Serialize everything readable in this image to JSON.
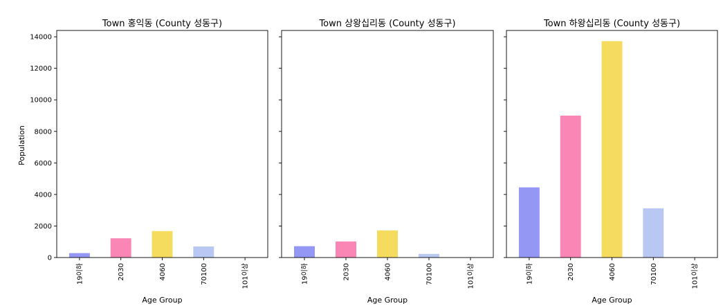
{
  "ylabel": "Population",
  "xlabel": "Age Group",
  "chart_data": [
    {
      "type": "bar",
      "title": "Town 홍익동 (County 성동구)",
      "categories": [
        "19이하",
        "2030",
        "4060",
        "70100",
        "101이상"
      ],
      "values": [
        280,
        1220,
        1680,
        700,
        10
      ],
      "xlabel": "Age Group",
      "ylabel": "Population",
      "ylim": [
        0,
        14400
      ],
      "grid": false,
      "colors": [
        "#9597f5",
        "#f986b5",
        "#f5dc5f",
        "#b8c8f2",
        "#f5dc5f"
      ]
    },
    {
      "type": "bar",
      "title": "Town 상왕십리동 (County 성동구)",
      "categories": [
        "19이하",
        "2030",
        "4060",
        "70100",
        "101이상"
      ],
      "values": [
        720,
        1020,
        1720,
        230,
        10
      ],
      "xlabel": "Age Group",
      "ylabel": "",
      "ylim": [
        0,
        14400
      ],
      "grid": false,
      "colors": [
        "#9597f5",
        "#f986b5",
        "#f5dc5f",
        "#b8c8f2",
        "#f5dc5f"
      ]
    },
    {
      "type": "bar",
      "title": "Town 하왕십리동 (County 성동구)",
      "categories": [
        "19이하",
        "2030",
        "4060",
        "70100",
        "101이상"
      ],
      "values": [
        4450,
        9000,
        13720,
        3120,
        10
      ],
      "xlabel": "Age Group",
      "ylabel": "",
      "ylim": [
        0,
        14400
      ],
      "grid": false,
      "colors": [
        "#9597f5",
        "#f986b5",
        "#f5dc5f",
        "#b8c8f2",
        "#f5dc5f"
      ]
    }
  ],
  "yticks": [
    0,
    2000,
    4000,
    6000,
    8000,
    10000,
    12000,
    14000
  ]
}
